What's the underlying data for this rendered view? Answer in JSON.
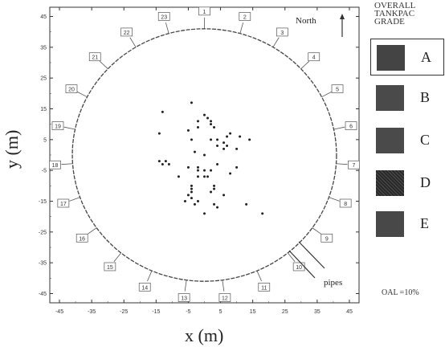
{
  "chart_data": {
    "type": "scatter",
    "title": "",
    "xlabel": "x (m)",
    "ylabel": "y (m)",
    "xlim": [
      -48,
      48
    ],
    "ylim": [
      -48,
      48
    ],
    "x_ticks": [
      "-45",
      "-35",
      "-25",
      "-15",
      "-5",
      "5",
      "15",
      "25",
      "35",
      "45"
    ],
    "y_ticks": [
      "45",
      "35",
      "25",
      "15",
      "5",
      "-5",
      "-15",
      "-25",
      "-35",
      "-45"
    ],
    "circle_radius": 41,
    "riser_labels": [
      "1",
      "2",
      "3",
      "4",
      "5",
      "6",
      "7",
      "8",
      "9",
      "10",
      "11",
      "12",
      "13",
      "14",
      "15",
      "16",
      "17",
      "18",
      "19",
      "20",
      "21",
      "22",
      "23"
    ],
    "points": {
      "x": [
        -13,
        -4,
        0,
        1,
        2,
        -2,
        2,
        -2,
        3,
        -14,
        -5,
        -4,
        2,
        4,
        7,
        8,
        11,
        14,
        6,
        4,
        7,
        10,
        -3,
        0,
        -12,
        -14,
        -13,
        -11,
        6,
        -5,
        -2,
        -2,
        0,
        2,
        4,
        8,
        10,
        -8,
        -2,
        0,
        1,
        -4,
        -4,
        -4,
        2,
        3,
        3,
        -4,
        -2,
        -6,
        -5,
        -3,
        3,
        4,
        0,
        6,
        13,
        18
      ],
      "y": [
        14,
        17,
        13,
        12,
        11,
        11,
        10,
        9,
        9,
        7,
        8,
        5,
        5,
        5,
        6,
        7,
        6,
        5,
        4,
        3,
        3,
        2,
        1,
        0,
        -2,
        -2,
        -3,
        -3,
        2,
        -4,
        -4,
        -5,
        -5,
        -5,
        -3,
        -6,
        -4,
        -7,
        -7,
        -7,
        -7,
        -10,
        -11,
        -12,
        -12,
        -10,
        -11,
        -14,
        -15,
        -15,
        -13,
        -16,
        -16,
        -17,
        -19,
        -13,
        -16,
        -19
      ]
    }
  },
  "annotations": {
    "north": "North",
    "pipes": "pipes"
  },
  "legend": {
    "title_lines": [
      "OVERALL",
      "TANKPAC",
      "GRADE"
    ],
    "items": [
      {
        "label": "A",
        "color": "#444444",
        "selected": true
      },
      {
        "label": "B",
        "color": "#4a4a4a",
        "selected": false
      },
      {
        "label": "C",
        "color": "#4a4a4a",
        "selected": false
      },
      {
        "label": "D",
        "color": "#777777",
        "selected": false
      },
      {
        "label": "E",
        "color": "#484848",
        "selected": false
      }
    ],
    "note": "OAL =10%"
  }
}
